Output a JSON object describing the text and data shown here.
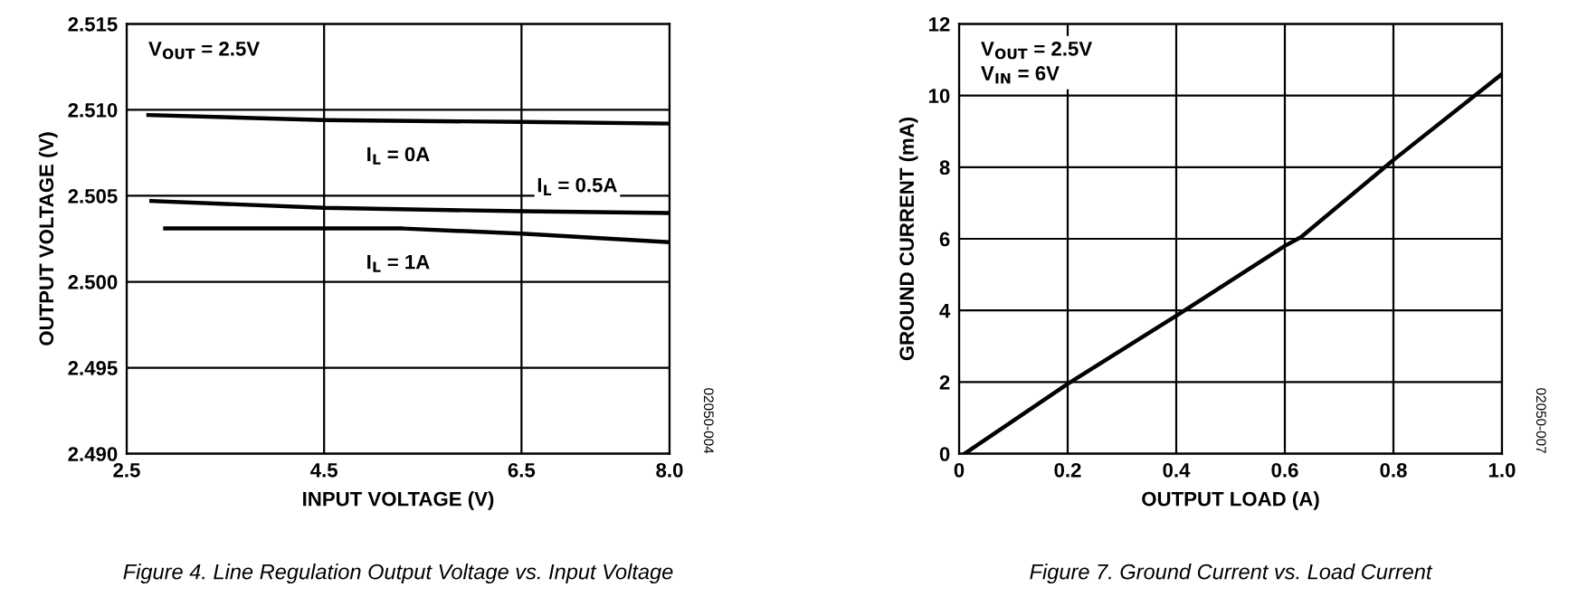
{
  "chart_data": [
    {
      "type": "line",
      "title": "Figure 4. Line Regulation Output Voltage vs. Input Voltage",
      "xlabel": "INPUT VOLTAGE (V)",
      "ylabel": "OUTPUT VOLTAGE (V)",
      "xlim": [
        2.5,
        8.0
      ],
      "xticks": [
        {
          "value": 2.5,
          "label": "2.5"
        },
        4.5,
        6.5,
        {
          "value": 8.0,
          "label": "8.0"
        }
      ],
      "ylim": [
        2.49,
        2.515
      ],
      "yticks": [
        {
          "value": 2.49,
          "label": "2.490"
        },
        2.495,
        {
          "value": 2.5,
          "label": "2.500"
        },
        2.505,
        {
          "value": 2.51,
          "label": "2.510"
        },
        2.515
      ],
      "grid": true,
      "legend": false,
      "marker": "none",
      "line_style": "solid",
      "series": [
        {
          "name": "I$_{L}$ = 0A",
          "color": "#000000",
          "x": [
            2.72,
            4.5,
            6.5,
            8.0
          ],
          "values": [
            2.5097,
            2.5094,
            2.5093,
            2.5092
          ]
        },
        {
          "name": "I$_{L}$ = 0.5A",
          "color": "#000000",
          "x": [
            2.75,
            4.5,
            6.5,
            8.0
          ],
          "values": [
            2.5047,
            2.5043,
            2.5041,
            2.504
          ]
        },
        {
          "name": "I$_{L}$ = 1A",
          "color": "#000000",
          "x": [
            2.89,
            5.3,
            6.5,
            8.0
          ],
          "values": [
            2.5031,
            2.5031,
            2.5028,
            2.5023
          ]
        }
      ],
      "annotations": [
        "V$_{OUT}$ = 2.5V",
        "02050-004"
      ]
    },
    {
      "type": "line",
      "title": "Figure 7. Ground Current vs. Load Current",
      "xlabel": "OUTPUT LOAD (A)",
      "ylabel": "GROUND CURRENT (mA)",
      "xlim": [
        0,
        1.0
      ],
      "xticks": [
        0,
        0.2,
        0.4,
        0.6,
        0.8,
        {
          "value": 1.0,
          "label": "1.0"
        }
      ],
      "ylim": [
        0,
        12
      ],
      "yticks": [
        0,
        2,
        4,
        6,
        8,
        10,
        12
      ],
      "grid": true,
      "legend": false,
      "marker": "none",
      "line_style": "solid",
      "series": [
        {
          "color": "#000000",
          "x": [
            0.01,
            0.2,
            0.4,
            0.6,
            0.63,
            0.8,
            1.0
          ],
          "values": [
            0,
            1.95,
            3.85,
            5.8,
            6.05,
            8.2,
            10.6
          ]
        }
      ],
      "annotations": [
        "V$_{OUT}$ = 2.5V\nV$_{IN}$ = 6V",
        "02050-007"
      ]
    }
  ]
}
